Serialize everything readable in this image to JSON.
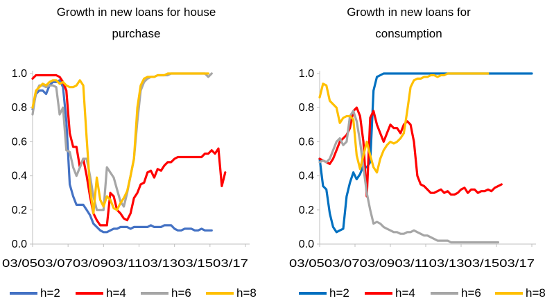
{
  "colors": {
    "h2_left": "#4472C4",
    "h2_right": "#0070C0",
    "h4": "#FF0000",
    "h6": "#A6A6A6",
    "h8": "#FFC000",
    "axis": "#BFBFBF"
  },
  "chart_data": [
    {
      "type": "line",
      "title_lines": [
        "Growth in new loans for house",
        "purchase"
      ],
      "xlabel": "",
      "ylabel": "",
      "ylim": [
        0,
        1
      ],
      "y_ticks": [
        "0.0",
        "0.2",
        "0.4",
        "0.6",
        "0.8",
        "1.0"
      ],
      "x_tick_labels": [
        "03/05",
        "03/07",
        "03/09",
        "03/11",
        "03/13",
        "03/15",
        "03/17"
      ],
      "grid": false,
      "x": [
        1,
        2,
        3,
        4,
        5,
        6,
        7,
        8,
        9,
        10,
        11,
        12,
        13,
        14,
        15,
        16,
        17,
        18,
        19,
        20,
        21,
        22,
        23,
        24,
        25,
        26,
        27,
        28,
        29,
        30,
        31,
        32,
        33,
        34,
        35,
        36,
        37,
        38,
        39,
        40,
        41,
        42,
        43,
        44,
        45,
        46,
        47,
        48,
        49,
        50,
        51,
        52,
        53,
        54,
        55,
        56,
        57,
        58,
        59,
        60,
        61,
        62,
        63,
        64
      ],
      "series": [
        {
          "name": "h=2",
          "values": [
            0.79,
            0.88,
            0.9,
            0.9,
            0.88,
            0.93,
            0.95,
            0.95,
            0.96,
            0.92,
            0.72,
            0.35,
            0.28,
            0.23,
            0.23,
            0.23,
            0.2,
            0.17,
            0.12,
            0.1,
            0.08,
            0.07,
            0.07,
            0.08,
            0.09,
            0.09,
            0.1,
            0.1,
            0.1,
            0.09,
            0.1,
            0.1,
            0.1,
            0.1,
            0.1,
            0.11,
            0.1,
            0.1,
            0.1,
            0.11,
            0.11,
            0.11,
            0.09,
            0.08,
            0.08,
            0.09,
            0.09,
            0.09,
            0.08,
            0.08,
            0.09,
            0.08,
            0.08,
            0.08,
            null,
            null,
            null,
            null,
            null,
            null,
            null,
            null,
            null,
            null
          ]
        },
        {
          "name": "h=4",
          "values": [
            0.97,
            0.99,
            0.99,
            0.99,
            0.99,
            0.99,
            0.99,
            0.99,
            0.98,
            0.95,
            0.9,
            0.65,
            0.57,
            0.57,
            0.45,
            0.5,
            0.4,
            0.28,
            0.18,
            0.14,
            0.11,
            0.11,
            0.11,
            0.3,
            0.28,
            0.2,
            0.18,
            0.15,
            0.14,
            0.18,
            0.27,
            0.3,
            0.35,
            0.36,
            0.42,
            0.43,
            0.39,
            0.44,
            0.43,
            0.46,
            0.48,
            0.48,
            0.5,
            0.51,
            0.51,
            0.51,
            0.51,
            0.51,
            0.51,
            0.51,
            0.51,
            0.53,
            0.53,
            0.55,
            0.53,
            0.56,
            0.34,
            0.42,
            null,
            null,
            null,
            null,
            null,
            null
          ]
        },
        {
          "name": "h=6",
          "values": [
            0.76,
            0.89,
            0.93,
            0.93,
            0.92,
            0.93,
            0.93,
            0.92,
            0.76,
            0.8,
            0.55,
            0.54,
            0.45,
            0.4,
            0.45,
            0.5,
            0.5,
            0.4,
            0.28,
            0.2,
            0.2,
            0.2,
            0.45,
            0.42,
            0.39,
            0.32,
            0.25,
            0.22,
            0.3,
            0.4,
            0.5,
            0.72,
            0.9,
            0.95,
            0.97,
            0.98,
            0.98,
            0.99,
            0.99,
            0.99,
            0.99,
            1.0,
            1.0,
            1.0,
            1.0,
            1.0,
            1.0,
            1.0,
            1.0,
            1.0,
            1.0,
            1.0,
            0.98,
            1.0,
            null,
            null,
            null,
            null,
            null,
            null,
            null,
            null,
            null,
            null
          ]
        },
        {
          "name": "h=8",
          "values": [
            0.8,
            0.9,
            0.92,
            0.94,
            0.93,
            0.95,
            0.96,
            0.96,
            0.94,
            0.95,
            0.93,
            0.92,
            0.92,
            0.93,
            0.96,
            0.93,
            0.62,
            0.33,
            0.18,
            0.39,
            0.26,
            0.22,
            0.28,
            0.26,
            0.21,
            0.2,
            0.24,
            0.27,
            0.31,
            0.4,
            0.5,
            0.8,
            0.93,
            0.97,
            0.98,
            0.98,
            0.98,
            0.99,
            0.99,
            0.99,
            1.0,
            1.0,
            1.0,
            1.0,
            1.0,
            1.0,
            1.0,
            1.0,
            1.0,
            1.0,
            1.0,
            1.0,
            1.0,
            null,
            null,
            null,
            null,
            null,
            null,
            null,
            null,
            null,
            null,
            null
          ]
        }
      ]
    },
    {
      "type": "line",
      "title_lines": [
        "Growth in new loans for",
        "consumption"
      ],
      "xlabel": "",
      "ylabel": "",
      "ylim": [
        0,
        1
      ],
      "y_ticks": [
        "0.0",
        "0.2",
        "0.4",
        "0.6",
        "0.8",
        "1.0"
      ],
      "x_tick_labels": [
        "03/05",
        "03/07",
        "03/09",
        "03/11",
        "03/13",
        "03/15",
        "03/17"
      ],
      "grid": false,
      "x": [
        1,
        2,
        3,
        4,
        5,
        6,
        7,
        8,
        9,
        10,
        11,
        12,
        13,
        14,
        15,
        16,
        17,
        18,
        19,
        20,
        21,
        22,
        23,
        24,
        25,
        26,
        27,
        28,
        29,
        30,
        31,
        32,
        33,
        34,
        35,
        36,
        37,
        38,
        39,
        40,
        41,
        42,
        43,
        44,
        45,
        46,
        47,
        48,
        49,
        50,
        51,
        52,
        53,
        54,
        55,
        56,
        57,
        58,
        59,
        60,
        61,
        62,
        63,
        64
      ],
      "series": [
        {
          "name": "h=2",
          "values": [
            0.5,
            0.34,
            0.32,
            0.18,
            0.1,
            0.07,
            0.08,
            0.09,
            0.28,
            0.36,
            0.42,
            0.38,
            0.41,
            0.46,
            0.45,
            0.48,
            0.9,
            0.98,
            0.99,
            1.0,
            1.0,
            1.0,
            1.0,
            1.0,
            1.0,
            1.0,
            1.0,
            1.0,
            1.0,
            1.0,
            1.0,
            1.0,
            1.0,
            1.0,
            1.0,
            1.0,
            1.0,
            1.0,
            1.0,
            1.0,
            1.0,
            1.0,
            1.0,
            1.0,
            1.0,
            1.0,
            1.0,
            1.0,
            1.0,
            1.0,
            1.0,
            1.0,
            1.0,
            1.0,
            1.0,
            1.0,
            1.0,
            1.0,
            1.0,
            1.0,
            1.0,
            1.0,
            1.0,
            1.0
          ]
        },
        {
          "name": "h=4",
          "values": [
            0.5,
            0.49,
            0.48,
            0.47,
            0.5,
            0.55,
            0.6,
            0.62,
            0.64,
            0.68,
            0.78,
            0.8,
            0.75,
            0.6,
            0.28,
            0.74,
            0.78,
            0.7,
            0.65,
            0.6,
            0.65,
            0.7,
            0.68,
            0.68,
            0.65,
            0.7,
            0.72,
            0.7,
            0.6,
            0.4,
            0.35,
            0.34,
            0.32,
            0.3,
            0.3,
            0.31,
            0.32,
            0.3,
            0.31,
            0.29,
            0.29,
            0.3,
            0.32,
            0.33,
            0.3,
            0.32,
            0.32,
            0.3,
            0.31,
            0.31,
            0.32,
            0.31,
            0.33,
            0.34,
            0.35,
            null,
            null,
            null,
            null,
            null,
            null,
            null,
            null,
            null
          ]
        },
        {
          "name": "h=6",
          "values": [
            0.48,
            0.49,
            0.48,
            0.5,
            0.55,
            0.6,
            0.62,
            0.58,
            0.6,
            0.75,
            0.78,
            0.72,
            0.6,
            0.45,
            0.3,
            0.2,
            0.12,
            0.13,
            0.12,
            0.1,
            0.09,
            0.08,
            0.07,
            0.07,
            0.06,
            0.06,
            0.07,
            0.07,
            0.08,
            0.07,
            0.06,
            0.05,
            0.05,
            0.04,
            0.03,
            0.02,
            0.02,
            0.02,
            0.02,
            0.01,
            0.01,
            0.01,
            0.01,
            0.01,
            0.01,
            0.01,
            0.01,
            0.01,
            0.01,
            0.01,
            0.01,
            0.01,
            0.01,
            0.01,
            null,
            null,
            null,
            null,
            null,
            null,
            null,
            null,
            null,
            null
          ]
        },
        {
          "name": "h=8",
          "values": [
            0.86,
            0.94,
            0.93,
            0.84,
            0.82,
            0.8,
            0.71,
            0.74,
            0.75,
            0.75,
            0.73,
            0.52,
            0.44,
            0.52,
            0.6,
            0.52,
            0.45,
            0.42,
            0.5,
            0.55,
            0.58,
            0.6,
            0.59,
            0.6,
            0.62,
            0.65,
            0.78,
            0.92,
            0.96,
            0.97,
            0.97,
            0.98,
            0.98,
            0.99,
            0.99,
            0.98,
            0.99,
            0.99,
            1.0,
            1.0,
            1.0,
            1.0,
            1.0,
            1.0,
            1.0,
            1.0,
            1.0,
            1.0,
            1.0,
            1.0,
            1.0,
            null,
            null,
            null,
            null,
            null,
            null,
            null,
            null,
            null,
            null,
            null,
            null,
            null
          ]
        }
      ]
    }
  ],
  "legend": [
    {
      "label": "h=2",
      "color_key": "h2_left"
    },
    {
      "label": "h=4",
      "color_key": "h4"
    },
    {
      "label": "h=6",
      "color_key": "h6"
    },
    {
      "label": "h=8",
      "color_key": "h8"
    },
    {
      "label": "h=2",
      "color_key": "h2_right"
    },
    {
      "label": "h=4",
      "color_key": "h4"
    },
    {
      "label": "h=6",
      "color_key": "h6"
    },
    {
      "label": "h=8",
      "color_key": "h8"
    }
  ]
}
